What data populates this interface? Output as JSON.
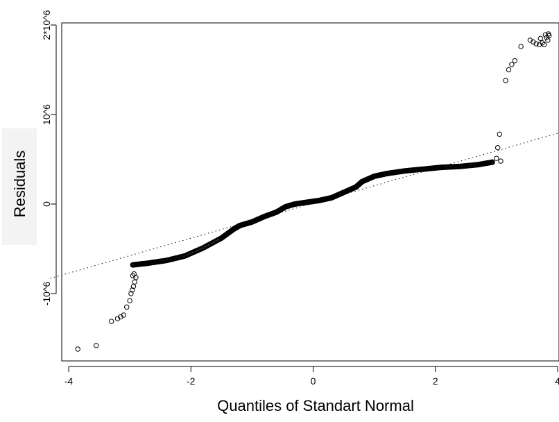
{
  "chart_data": {
    "type": "scatter",
    "title": "",
    "xlabel": "Quantiles of Standart Normal",
    "ylabel": "Residuals",
    "xlim": [
      -4,
      4
    ],
    "ylim": [
      -1750000,
      2050000
    ],
    "xticks": [
      {
        "value": -4,
        "label": "-4"
      },
      {
        "value": -2,
        "label": "-2"
      },
      {
        "value": 0,
        "label": "0"
      },
      {
        "value": 2,
        "label": "2"
      },
      {
        "value": 4,
        "label": "4"
      }
    ],
    "yticks": [
      {
        "value": -1000000,
        "label": "-10^6"
      },
      {
        "value": 0,
        "label": "0"
      },
      {
        "value": 1000000,
        "label": "10^6"
      },
      {
        "value": 2000000,
        "label": "2*10^6"
      }
    ],
    "grid": false,
    "legend": "none",
    "reference_line": {
      "x": [
        -4.3,
        4.0
      ],
      "y": [
        -830000,
        790000
      ],
      "style": "dotted"
    },
    "body_curve": {
      "x": [
        -2.95,
        -2.7,
        -2.4,
        -2.1,
        -1.8,
        -1.5,
        -1.3,
        -1.2,
        -1.0,
        -0.8,
        -0.6,
        -0.45,
        -0.3,
        -0.1,
        0.1,
        0.3,
        0.5,
        0.7,
        0.8,
        1.0,
        1.2,
        1.5,
        1.8,
        2.1,
        2.4,
        2.7,
        2.95
      ],
      "y": [
        -680000,
        -660000,
        -630000,
        -580000,
        -490000,
        -380000,
        -280000,
        -240000,
        -200000,
        -140000,
        -90000,
        -30000,
        0,
        20000,
        40000,
        70000,
        130000,
        190000,
        250000,
        310000,
        340000,
        370000,
        390000,
        410000,
        420000,
        440000,
        470000
      ]
    },
    "tail_points": {
      "x": [
        -3.85,
        -3.55,
        -3.3,
        -3.2,
        -3.15,
        -3.1,
        -3.05,
        -3.0,
        -2.98,
        -2.96,
        -2.94,
        -2.92,
        -2.9,
        -2.95,
        -2.93,
        3.0,
        3.02,
        3.05,
        3.07,
        3.15,
        3.2,
        3.25,
        3.3,
        3.4,
        3.55,
        3.6,
        3.65,
        3.7,
        3.72,
        3.75,
        3.78,
        3.8,
        3.82,
        3.84,
        3.85,
        3.86
      ],
      "y": [
        -1620000,
        -1580000,
        -1310000,
        -1280000,
        -1260000,
        -1240000,
        -1150000,
        -1080000,
        -1000000,
        -960000,
        -920000,
        -870000,
        -820000,
        -800000,
        -780000,
        510000,
        630000,
        780000,
        480000,
        1380000,
        1500000,
        1560000,
        1600000,
        1760000,
        1830000,
        1810000,
        1790000,
        1780000,
        1850000,
        1800000,
        1780000,
        1890000,
        1860000,
        1830000,
        1900000,
        1880000
      ]
    }
  }
}
